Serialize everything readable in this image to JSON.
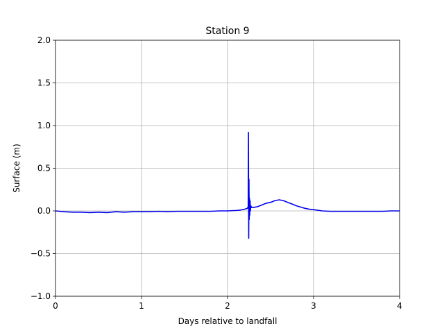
{
  "chart_data": {
    "type": "line",
    "title": "Station 9",
    "xlabel": "Days relative to landfall",
    "ylabel": "Surface (m)",
    "xlim": [
      0,
      4
    ],
    "ylim": [
      -1.0,
      2.0
    ],
    "xticks": [
      0,
      1,
      2,
      3,
      4
    ],
    "xtick_labels": [
      "0",
      "1",
      "2",
      "3",
      "4"
    ],
    "yticks": [
      -1.0,
      -0.5,
      0.0,
      0.5,
      1.0,
      1.5,
      2.0
    ],
    "ytick_labels": [
      "−1.0",
      "−0.5",
      "0.0",
      "0.5",
      "1.0",
      "1.5",
      "2.0"
    ],
    "grid": true,
    "series": [
      {
        "color": "#0000ee",
        "x": [
          0,
          0.1,
          0.2,
          0.3,
          0.4,
          0.5,
          0.6,
          0.7,
          0.8,
          0.9,
          1.0,
          1.1,
          1.2,
          1.3,
          1.4,
          1.5,
          1.6,
          1.7,
          1.8,
          1.9,
          2.0,
          2.1,
          2.15,
          2.2,
          2.23,
          2.24,
          2.243,
          2.246,
          2.249,
          2.252,
          2.255,
          2.258,
          2.262,
          2.266,
          2.27,
          2.28,
          2.3,
          2.35,
          2.4,
          2.45,
          2.5,
          2.55,
          2.6,
          2.65,
          2.7,
          2.75,
          2.8,
          2.85,
          2.9,
          2.95,
          3.0,
          3.1,
          3.2,
          3.3,
          3.4,
          3.5,
          3.6,
          3.7,
          3.8,
          3.9,
          4.0
        ],
        "y": [
          0.0,
          -0.01,
          -0.015,
          -0.015,
          -0.02,
          -0.015,
          -0.02,
          -0.01,
          -0.015,
          -0.01,
          -0.01,
          -0.01,
          -0.005,
          -0.01,
          -0.005,
          -0.005,
          -0.005,
          -0.005,
          -0.005,
          0.0,
          0.0,
          0.005,
          0.01,
          0.02,
          0.03,
          0.05,
          0.92,
          -0.32,
          0.37,
          -0.1,
          0.15,
          -0.05,
          0.12,
          0.0,
          0.06,
          0.04,
          0.04,
          0.05,
          0.07,
          0.09,
          0.1,
          0.12,
          0.13,
          0.12,
          0.1,
          0.08,
          0.06,
          0.045,
          0.03,
          0.02,
          0.015,
          0.0,
          -0.005,
          -0.005,
          -0.005,
          -0.005,
          -0.005,
          -0.005,
          -0.005,
          0.0,
          0.0
        ]
      }
    ]
  }
}
